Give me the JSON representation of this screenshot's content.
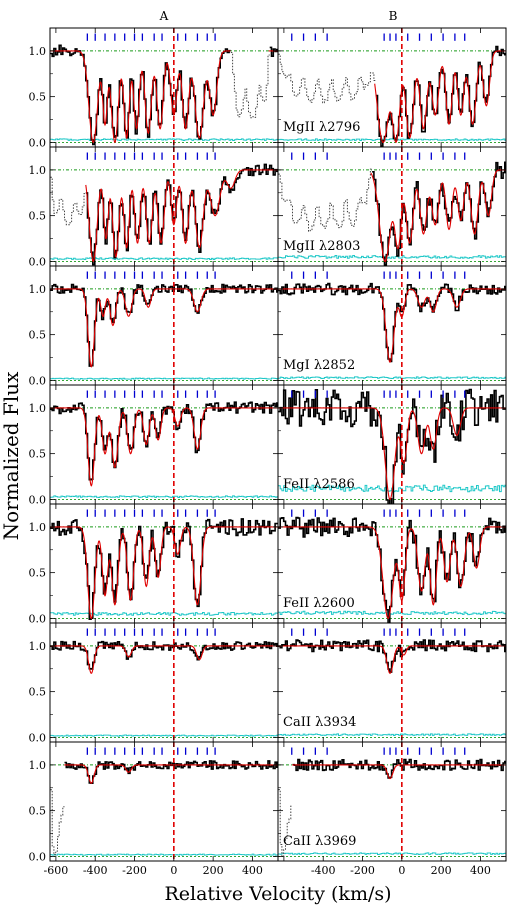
{
  "chart_data": {
    "type": "line",
    "layout": "7 rows x 2 columns of absorption-line panels, shared axes",
    "column_labels": [
      "A",
      "B"
    ],
    "xlabel": "Relative Velocity (km/s)",
    "ylabel": "Normalized Flux",
    "xlim": [
      -630,
      530
    ],
    "ylim": [
      -0.05,
      1.25
    ],
    "x_ticks": [
      -600,
      -400,
      -200,
      0,
      200,
      400
    ],
    "y_ticks": [
      0.0,
      0.5,
      1.0
    ],
    "zero_line_x": 0,
    "continuum_y": 1.0,
    "colors": {
      "data": "#000000",
      "model": "#e00000",
      "error": "#1ec8c8",
      "continuum": "#1a9a1a",
      "zero_line": "#e00000",
      "ticks": "#0000d0",
      "blend": "#444444"
    },
    "rows": [
      {
        "ion_label": "MgII λ2796",
        "A": {
          "component_ticks": [
            -440,
            -400,
            -350,
            -300,
            -250,
            -200,
            -160,
            -100,
            -60,
            20,
            60,
            120,
            170,
            210
          ],
          "features": [
            {
              "v": -410,
              "w": 22,
              "d": 1.0
            },
            {
              "v": -350,
              "w": 12,
              "d": 0.8
            },
            {
              "v": -300,
              "w": 18,
              "d": 1.0
            },
            {
              "v": -240,
              "w": 14,
              "d": 0.95
            },
            {
              "v": -190,
              "w": 14,
              "d": 0.85
            },
            {
              "v": -130,
              "w": 16,
              "d": 0.9
            },
            {
              "v": -70,
              "w": 16,
              "d": 0.85
            },
            {
              "v": 0,
              "w": 16,
              "d": 0.7
            },
            {
              "v": 60,
              "w": 16,
              "d": 0.85
            },
            {
              "v": 130,
              "w": 22,
              "d": 0.95
            },
            {
              "v": 200,
              "w": 18,
              "d": 0.7
            }
          ],
          "blend": {
            "from": 290,
            "to": 480,
            "depth": 0.75
          },
          "error_level": 0.03
        },
        "B": {
          "component_ticks": [
            -560,
            -500,
            -440,
            -380,
            -90,
            -60,
            -30,
            30,
            90,
            150,
            210,
            270,
            320
          ],
          "features": [
            {
              "v": -95,
              "w": 30,
              "d": 1.0
            },
            {
              "v": -30,
              "w": 20,
              "d": 1.0
            },
            {
              "v": 40,
              "w": 20,
              "d": 0.95
            },
            {
              "v": 110,
              "w": 18,
              "d": 0.85
            },
            {
              "v": 170,
              "w": 18,
              "d": 0.7
            },
            {
              "v": 240,
              "w": 16,
              "d": 0.8
            },
            {
              "v": 300,
              "w": 16,
              "d": 0.7
            },
            {
              "v": 360,
              "w": 18,
              "d": 0.8
            },
            {
              "v": 430,
              "w": 16,
              "d": 0.6
            }
          ],
          "blend": {
            "from": -630,
            "to": -140,
            "depth": 0.55
          },
          "error_level": 0.03
        }
      },
      {
        "ion_label": "MgII λ2803",
        "A": {
          "component_ticks": [
            -440,
            -400,
            -350,
            -300,
            -250,
            -200,
            -160,
            -100,
            -60,
            20,
            60,
            120,
            170,
            210
          ],
          "features": [
            {
              "v": -410,
              "w": 20,
              "d": 1.0
            },
            {
              "v": -345,
              "w": 12,
              "d": 0.75
            },
            {
              "v": -295,
              "w": 16,
              "d": 0.95
            },
            {
              "v": -240,
              "w": 14,
              "d": 0.85
            },
            {
              "v": -185,
              "w": 14,
              "d": 0.8
            },
            {
              "v": -125,
              "w": 16,
              "d": 0.8
            },
            {
              "v": -65,
              "w": 16,
              "d": 0.8
            },
            {
              "v": 0,
              "w": 14,
              "d": 0.6
            },
            {
              "v": 60,
              "w": 16,
              "d": 0.8
            },
            {
              "v": 130,
              "w": 20,
              "d": 0.85
            },
            {
              "v": 210,
              "w": 24,
              "d": 0.5
            },
            {
              "v": 290,
              "w": 20,
              "d": 0.2
            }
          ],
          "blend": {
            "from": -630,
            "to": -450,
            "depth": 0.6
          },
          "error_level": 0.03
        },
        "B": {
          "component_ticks": [
            -560,
            -500,
            -440,
            -380,
            -90,
            -60,
            -30,
            30,
            90,
            150,
            210,
            270,
            320
          ],
          "features": [
            {
              "v": -85,
              "w": 28,
              "d": 1.0
            },
            {
              "v": -20,
              "w": 18,
              "d": 0.85
            },
            {
              "v": 40,
              "w": 18,
              "d": 0.8
            },
            {
              "v": 110,
              "w": 18,
              "d": 0.7
            },
            {
              "v": 170,
              "w": 18,
              "d": 0.6
            },
            {
              "v": 240,
              "w": 16,
              "d": 0.65
            },
            {
              "v": 300,
              "w": 16,
              "d": 0.55
            },
            {
              "v": 370,
              "w": 18,
              "d": 0.7
            },
            {
              "v": 440,
              "w": 16,
              "d": 0.5
            }
          ],
          "blend": {
            "from": -630,
            "to": -160,
            "depth": 0.65
          },
          "error_level": 0.05
        }
      },
      {
        "ion_label": "MgI λ2852",
        "A": {
          "component_ticks": [
            -440,
            -400,
            -350,
            -300,
            -250,
            -200,
            -160,
            -100,
            -60,
            20,
            60,
            120,
            170,
            210
          ],
          "features": [
            {
              "v": -420,
              "w": 16,
              "d": 0.85
            },
            {
              "v": -360,
              "w": 12,
              "d": 0.3
            },
            {
              "v": -310,
              "w": 14,
              "d": 0.4
            },
            {
              "v": -230,
              "w": 16,
              "d": 0.3
            },
            {
              "v": -130,
              "w": 14,
              "d": 0.2
            },
            {
              "v": 120,
              "w": 18,
              "d": 0.25
            }
          ],
          "blend": null,
          "error_level": 0.02
        },
        "B": {
          "component_ticks": [
            -560,
            -500,
            -440,
            -380,
            -90,
            -60,
            -30,
            30,
            90,
            150,
            210,
            270,
            320
          ],
          "features": [
            {
              "v": -60,
              "w": 20,
              "d": 0.8
            },
            {
              "v": 0,
              "w": 14,
              "d": 0.3
            },
            {
              "v": 100,
              "w": 18,
              "d": 0.2
            },
            {
              "v": 160,
              "w": 16,
              "d": 0.25
            },
            {
              "v": 280,
              "w": 18,
              "d": 0.2
            }
          ],
          "blend": null,
          "error_level": 0.03
        }
      },
      {
        "ion_label": "FeII λ2586",
        "A": {
          "component_ticks": [
            -440,
            -400,
            -350,
            -300,
            -250,
            -200,
            -160,
            -100,
            -60,
            20,
            60,
            120,
            170,
            210
          ],
          "features": [
            {
              "v": -420,
              "w": 16,
              "d": 0.85
            },
            {
              "v": -350,
              "w": 14,
              "d": 0.5
            },
            {
              "v": -300,
              "w": 16,
              "d": 0.65
            },
            {
              "v": -220,
              "w": 16,
              "d": 0.5
            },
            {
              "v": -140,
              "w": 14,
              "d": 0.4
            },
            {
              "v": -80,
              "w": 14,
              "d": 0.35
            },
            {
              "v": 20,
              "w": 14,
              "d": 0.2
            },
            {
              "v": 120,
              "w": 16,
              "d": 0.45
            }
          ],
          "blend": null,
          "error_level": 0.03
        },
        "B": {
          "component_ticks": [
            -560,
            -500,
            -440,
            -380,
            -90,
            -60,
            -30,
            30,
            90,
            150,
            210,
            270,
            320
          ],
          "features": [
            {
              "v": -60,
              "w": 24,
              "d": 1.0
            },
            {
              "v": 10,
              "w": 16,
              "d": 0.6
            },
            {
              "v": 100,
              "w": 18,
              "d": 0.5
            },
            {
              "v": 160,
              "w": 16,
              "d": 0.45
            },
            {
              "v": 280,
              "w": 18,
              "d": 0.3
            }
          ],
          "blend": null,
          "error_level": 0.12
        }
      },
      {
        "ion_label": "FeII λ2600",
        "A": {
          "component_ticks": [
            -440,
            -400,
            -350,
            -300,
            -250,
            -200,
            -160,
            -100,
            -60,
            20,
            60,
            120,
            170,
            210
          ],
          "features": [
            {
              "v": -420,
              "w": 18,
              "d": 1.0
            },
            {
              "v": -350,
              "w": 14,
              "d": 0.75
            },
            {
              "v": -300,
              "w": 16,
              "d": 0.85
            },
            {
              "v": -220,
              "w": 16,
              "d": 0.8
            },
            {
              "v": -140,
              "w": 14,
              "d": 0.65
            },
            {
              "v": -80,
              "w": 14,
              "d": 0.55
            },
            {
              "v": 20,
              "w": 14,
              "d": 0.3
            },
            {
              "v": 120,
              "w": 18,
              "d": 0.85
            }
          ],
          "blend": null,
          "error_level": 0.05
        },
        "B": {
          "component_ticks": [
            -560,
            -500,
            -440,
            -380,
            -90,
            -60,
            -30,
            30,
            90,
            150,
            210,
            270,
            320
          ],
          "features": [
            {
              "v": -70,
              "w": 26,
              "d": 1.0
            },
            {
              "v": 0,
              "w": 16,
              "d": 0.8
            },
            {
              "v": 100,
              "w": 18,
              "d": 0.7
            },
            {
              "v": 160,
              "w": 16,
              "d": 0.85
            },
            {
              "v": 230,
              "w": 16,
              "d": 0.6
            },
            {
              "v": 300,
              "w": 18,
              "d": 0.65
            },
            {
              "v": 380,
              "w": 16,
              "d": 0.45
            }
          ],
          "blend": null,
          "error_level": 0.06
        }
      },
      {
        "ion_label": "CaII λ3934",
        "A": {
          "component_ticks": [
            -440,
            -400,
            -350,
            -300,
            -250,
            -200,
            -160,
            -100,
            -60,
            20,
            60,
            120,
            170,
            210
          ],
          "features": [
            {
              "v": -420,
              "w": 14,
              "d": 0.3
            },
            {
              "v": -230,
              "w": 14,
              "d": 0.12
            },
            {
              "v": 130,
              "w": 14,
              "d": 0.15
            }
          ],
          "blend": null,
          "error_level": 0.02
        },
        "B": {
          "component_ticks": [
            -560,
            -500,
            -440,
            -380,
            -90,
            -60,
            -30,
            30,
            90,
            150,
            210,
            270,
            320
          ],
          "features": [
            {
              "v": -60,
              "w": 16,
              "d": 0.3
            },
            {
              "v": 10,
              "w": 12,
              "d": 0.1
            }
          ],
          "blend": null,
          "error_level": 0.03
        }
      },
      {
        "ion_label": "CaII λ3969",
        "A": {
          "component_ticks": [
            -440,
            -400,
            -350,
            -300,
            -250,
            -200,
            -160,
            -100,
            -60,
            20,
            60,
            120,
            170,
            210
          ],
          "features": [
            {
              "v": -420,
              "w": 14,
              "d": 0.2
            },
            {
              "v": -230,
              "w": 14,
              "d": 0.08
            }
          ],
          "blend": {
            "from": -630,
            "to": -560,
            "depth": 1.0
          },
          "error_level": 0.02
        },
        "B": {
          "component_ticks": [
            -560,
            -500,
            -440,
            -380,
            -90,
            -60,
            -30,
            30,
            90,
            150,
            210,
            270,
            320
          ],
          "features": [
            {
              "v": -60,
              "w": 14,
              "d": 0.15
            }
          ],
          "blend": {
            "from": -630,
            "to": -560,
            "depth": 1.0
          },
          "error_level": 0.03
        }
      }
    ]
  }
}
